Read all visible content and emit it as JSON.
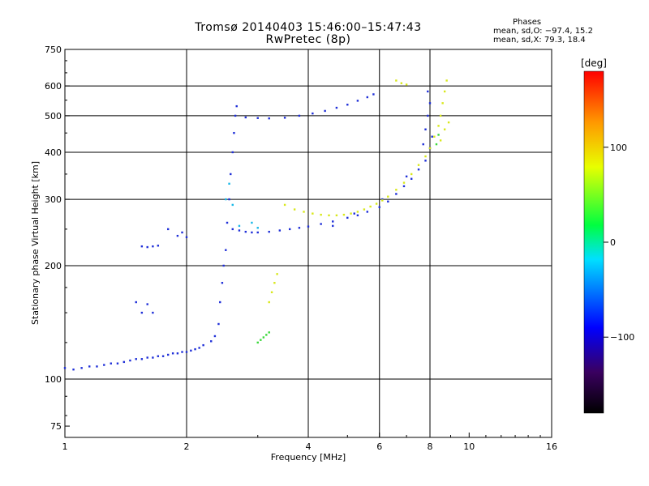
{
  "header": {
    "title_line1": "Tromsø 20140403 15:46:00–15:47:43",
    "title_line2": "RwPretec (8p)"
  },
  "phases_box": {
    "heading": "Phases",
    "line_o": "mean, sd,O: −97.4, 15.2",
    "line_x": "mean, sd,X:  79.3, 18.4"
  },
  "colorbar": {
    "label": "[deg]",
    "ticks": [
      "100",
      "0",
      "−100"
    ],
    "tick_values": [
      100,
      0,
      -100
    ],
    "range": [
      -180,
      180
    ]
  },
  "chart_data": {
    "type": "scatter",
    "xlabel": "Frequency [MHz]",
    "ylabel": "Stationary phase Virtual Height [km]",
    "x_scale": "log",
    "y_scale": "log",
    "xlim": [
      1,
      16
    ],
    "ylim": [
      70,
      750
    ],
    "x_ticks": [
      {
        "v": 1,
        "label": "1"
      },
      {
        "v": 2,
        "label": "2"
      },
      {
        "v": 4,
        "label": "4"
      },
      {
        "v": 6,
        "label": "6"
      },
      {
        "v": 8,
        "label": "8"
      },
      {
        "v": 10,
        "label": "10"
      },
      {
        "v": 16,
        "label": "16"
      }
    ],
    "y_ticks": [
      {
        "v": 75,
        "label": "75"
      },
      {
        "v": 100,
        "label": "100"
      },
      {
        "v": 200,
        "label": "200"
      },
      {
        "v": 300,
        "label": "300"
      },
      {
        "v": 400,
        "label": "400"
      },
      {
        "v": 500,
        "label": "500"
      },
      {
        "v": 600,
        "label": "600"
      },
      {
        "v": 750,
        "label": "750"
      }
    ],
    "x_grid": [
      2,
      4,
      6,
      8
    ],
    "y_grid": [
      100,
      200,
      300,
      400,
      500,
      600
    ],
    "grid": true,
    "series": [
      {
        "color": "#1f2fd8",
        "points": [
          [
            1.0,
            107
          ],
          [
            1.05,
            106
          ],
          [
            1.1,
            107
          ],
          [
            1.15,
            108
          ],
          [
            1.2,
            108
          ],
          [
            1.25,
            109
          ],
          [
            1.3,
            110
          ],
          [
            1.35,
            110
          ],
          [
            1.4,
            111
          ],
          [
            1.45,
            112
          ],
          [
            1.5,
            113
          ],
          [
            1.55,
            113
          ],
          [
            1.6,
            114
          ],
          [
            1.65,
            114
          ],
          [
            1.7,
            115
          ],
          [
            1.75,
            115
          ],
          [
            1.8,
            116
          ],
          [
            1.85,
            117
          ],
          [
            1.9,
            117
          ],
          [
            1.95,
            118
          ],
          [
            2.0,
            118
          ],
          [
            2.05,
            119
          ],
          [
            2.1,
            120
          ],
          [
            2.15,
            121
          ],
          [
            2.2,
            123
          ],
          [
            2.3,
            126
          ],
          [
            2.35,
            130
          ],
          [
            2.4,
            140
          ],
          [
            2.42,
            160
          ],
          [
            2.45,
            180
          ],
          [
            2.47,
            200
          ],
          [
            2.5,
            220
          ],
          [
            2.52,
            260
          ],
          [
            2.55,
            300
          ],
          [
            2.57,
            350
          ],
          [
            2.6,
            400
          ],
          [
            2.62,
            450
          ],
          [
            2.64,
            500
          ],
          [
            2.66,
            530
          ],
          [
            2.6,
            250
          ],
          [
            2.7,
            248
          ],
          [
            2.8,
            246
          ],
          [
            2.9,
            245
          ],
          [
            3.0,
            245
          ],
          [
            3.2,
            246
          ],
          [
            3.4,
            248
          ],
          [
            3.6,
            250
          ],
          [
            3.8,
            252
          ],
          [
            4.0,
            254
          ],
          [
            4.3,
            258
          ],
          [
            4.6,
            262
          ],
          [
            5.0,
            268
          ],
          [
            5.3,
            272
          ],
          [
            5.6,
            278
          ],
          [
            6.0,
            286
          ],
          [
            6.3,
            296
          ],
          [
            6.6,
            310
          ],
          [
            6.9,
            325
          ],
          [
            7.2,
            340
          ],
          [
            7.5,
            360
          ],
          [
            7.8,
            380
          ],
          [
            8.0,
            410
          ],
          [
            8.1,
            440
          ],
          [
            7.7,
            420
          ],
          [
            7.8,
            460
          ],
          [
            7.9,
            500
          ],
          [
            8.0,
            540
          ],
          [
            7.9,
            580
          ],
          [
            2.8,
            495
          ],
          [
            3.0,
            493
          ],
          [
            3.2,
            492
          ],
          [
            3.5,
            494
          ],
          [
            3.8,
            500
          ],
          [
            4.1,
            507
          ],
          [
            4.4,
            515
          ],
          [
            4.7,
            525
          ],
          [
            5.0,
            535
          ],
          [
            5.3,
            548
          ],
          [
            5.6,
            560
          ],
          [
            5.8,
            570
          ],
          [
            1.55,
            225
          ],
          [
            1.6,
            224
          ],
          [
            1.65,
            225
          ],
          [
            1.7,
            226
          ],
          [
            1.5,
            160
          ],
          [
            1.55,
            150
          ],
          [
            1.6,
            158
          ],
          [
            1.65,
            150
          ],
          [
            1.9,
            240
          ],
          [
            1.95,
            245
          ],
          [
            2.0,
            238
          ],
          [
            1.8,
            250
          ],
          [
            4.6,
            255
          ],
          [
            5.2,
            275
          ],
          [
            6.1,
            300
          ],
          [
            7.0,
            345
          ]
        ]
      },
      {
        "color": "#d8e81a",
        "points": [
          [
            3.5,
            290
          ],
          [
            3.7,
            282
          ],
          [
            3.9,
            278
          ],
          [
            4.1,
            275
          ],
          [
            4.3,
            273
          ],
          [
            4.5,
            272
          ],
          [
            4.7,
            272
          ],
          [
            4.9,
            273
          ],
          [
            5.1,
            275
          ],
          [
            5.3,
            278
          ],
          [
            5.5,
            282
          ],
          [
            5.7,
            287
          ],
          [
            5.9,
            292
          ],
          [
            6.1,
            298
          ],
          [
            6.3,
            305
          ],
          [
            6.6,
            318
          ],
          [
            6.9,
            332
          ],
          [
            7.2,
            350
          ],
          [
            7.5,
            370
          ],
          [
            7.8,
            390
          ],
          [
            8.0,
            410
          ],
          [
            8.2,
            440
          ],
          [
            8.4,
            470
          ],
          [
            8.5,
            500
          ],
          [
            8.6,
            540
          ],
          [
            8.7,
            580
          ],
          [
            8.8,
            620
          ],
          [
            6.6,
            620
          ],
          [
            6.8,
            610
          ],
          [
            7.0,
            605
          ],
          [
            8.5,
            430
          ],
          [
            8.7,
            460
          ],
          [
            8.9,
            480
          ],
          [
            3.2,
            160
          ],
          [
            3.25,
            170
          ],
          [
            3.3,
            180
          ],
          [
            3.35,
            190
          ]
        ]
      },
      {
        "color": "#3ad83a",
        "points": [
          [
            3.0,
            125
          ],
          [
            3.05,
            127
          ],
          [
            3.1,
            129
          ],
          [
            3.15,
            131
          ],
          [
            3.2,
            133
          ],
          [
            8.3,
            420
          ],
          [
            8.4,
            445
          ]
        ]
      },
      {
        "color": "#18b8e8",
        "points": [
          [
            2.5,
            300
          ],
          [
            2.55,
            330
          ],
          [
            2.6,
            290
          ],
          [
            2.7,
            255
          ],
          [
            2.9,
            260
          ],
          [
            3.0,
            252
          ]
        ]
      }
    ]
  }
}
